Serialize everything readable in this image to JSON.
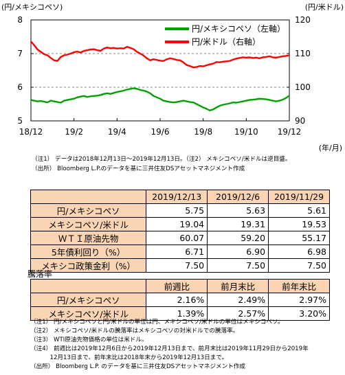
{
  "chart_data": {
    "type": "line",
    "left_axis_label": "(円/メキシコペソ)",
    "right_axis_label": "(円/米ドル)",
    "x_unit_label": "(年/月)",
    "x_tick_labels": [
      "18/12",
      "19/2",
      "19/4",
      "19/6",
      "19/8",
      "19/10",
      "19/12"
    ],
    "y_left": {
      "min": 5,
      "max": 8,
      "ticks": [
        "5",
        "6",
        "7",
        "8"
      ]
    },
    "y_right": {
      "min": 90,
      "max": 120,
      "ticks": [
        "90",
        "100",
        "110",
        "120"
      ]
    },
    "reference_lines_right": [
      100,
      110
    ],
    "series": [
      {
        "name": "円/メキシコペソ（左軸）",
        "color": "#00a000",
        "axis": "left",
        "values": [
          5.62,
          5.6,
          5.58,
          5.59,
          5.57,
          5.55,
          5.6,
          5.58,
          5.56,
          5.54,
          5.6,
          5.62,
          5.64,
          5.66,
          5.7,
          5.72,
          5.74,
          5.71,
          5.73,
          5.74,
          5.75,
          5.77,
          5.8,
          5.82,
          5.8,
          5.83,
          5.86,
          5.88,
          5.9,
          5.93,
          5.95,
          5.97,
          5.95,
          5.92,
          5.9,
          5.87,
          5.82,
          5.74,
          5.7,
          5.66,
          5.6,
          5.58,
          5.56,
          5.55,
          5.56,
          5.58,
          5.6,
          5.58,
          5.56,
          5.55,
          5.5,
          5.45,
          5.4,
          5.36,
          5.31,
          5.34,
          5.4,
          5.45,
          5.48,
          5.5,
          5.52,
          5.55,
          5.54,
          5.56,
          5.58,
          5.6,
          5.62,
          5.63,
          5.64,
          5.66,
          5.65,
          5.64,
          5.62,
          5.6,
          5.58,
          5.6,
          5.63,
          5.68,
          5.75
        ]
      },
      {
        "name": "円/米ドル（右軸）",
        "color": "#ff0000",
        "axis": "right",
        "values": [
          113.6,
          112.5,
          111.2,
          110.5,
          109.8,
          109.5,
          108.7,
          108.0,
          107.8,
          109.0,
          109.5,
          109.7,
          110.0,
          110.4,
          110.6,
          110.3,
          110.8,
          111.0,
          111.2,
          111.3,
          111.0,
          110.8,
          111.5,
          111.8,
          111.6,
          111.7,
          111.5,
          111.6,
          111.5,
          112.0,
          111.7,
          111.3,
          110.5,
          110.0,
          109.4,
          108.6,
          108.0,
          108.3,
          108.1,
          107.9,
          107.8,
          108.3,
          108.6,
          108.4,
          108.1,
          108.0,
          107.4,
          106.6,
          106.3,
          105.9,
          106.0,
          106.3,
          106.2,
          106.5,
          106.8,
          107.0,
          107.5,
          107.4,
          107.6,
          107.7,
          107.8,
          108.2,
          108.5,
          108.7,
          108.9,
          108.8,
          108.9,
          108.7,
          108.8,
          108.6,
          108.9,
          109.0,
          109.2,
          108.9,
          108.8,
          109.0,
          109.2,
          109.3,
          109.5
        ]
      }
    ]
  },
  "notes_top": [
    "（注1） データは2018年12月13日～2019年12月13日。（注2） メキシコペソ/米ドルは逆目盛。",
    "（出所） Bloomberg L.P.のデータを基に三井住友DSアセットマネジメント作成"
  ],
  "table1": {
    "headers": [
      "2019/12/13",
      "2019/12/6",
      "2019/11/29"
    ],
    "rows": [
      {
        "label": "円/メキシコペソ",
        "values": [
          "5.75",
          "5.63",
          "5.61"
        ]
      },
      {
        "label": "メキシコペソ/米ドル",
        "values": [
          "19.04",
          "19.31",
          "19.53"
        ]
      },
      {
        "label": "ＷＴＩ原油先物",
        "values": [
          "60.07",
          "59.20",
          "55.17"
        ]
      },
      {
        "label": "5年債利回り（%）",
        "values": [
          "6.71",
          "6.90",
          "6.98"
        ]
      },
      {
        "label": "メキシコ政策金利（%）",
        "values": [
          "7.50",
          "7.50",
          "7.50"
        ]
      }
    ]
  },
  "table2": {
    "caption": "騰落率",
    "headers": [
      "前週比",
      "前月末比",
      "前年末比"
    ],
    "rows": [
      {
        "label": "円/メキシコペソ",
        "values": [
          "2.16%",
          "2.49%",
          "2.97%"
        ]
      },
      {
        "label": "メキシコペソ/米ドル",
        "values": [
          "1.39%",
          "2.57%",
          "3.20%"
        ]
      }
    ]
  },
  "notes_bottom": [
    "（注1） 円/メキシコペソと円/米ドルの単位は円、メキシコペソ/米ドルの単位はメキシコペソ。",
    "（注2） メキシコペソ/米ドルの騰落率はメキシコペソの対米ドルでの騰落率。",
    "（注3） WTI原油先物価格の単位は米ドル。",
    "（注4） 前週比は2019年12月6日から2019年12月13日まで、前月末比は2019年11月29日から2019年",
    "　　　 12月13日まで、前年末比は2018年末から2019年12月13日まで。",
    "（出所） Bloomberg L.P. のデータを基に三井住友DSアセットマネジメント作成"
  ]
}
